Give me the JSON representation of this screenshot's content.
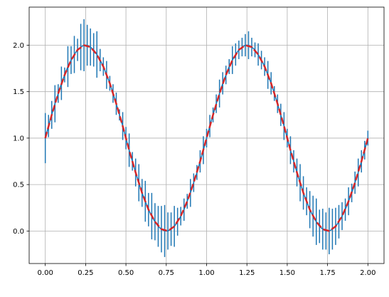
{
  "chart_data": {
    "type": "line",
    "series": [
      {
        "color": "#1f77b4",
        "x": [
          0,
          0.02,
          0.04,
          0.06,
          0.08,
          0.1,
          0.12,
          0.14,
          0.16,
          0.18,
          0.2,
          0.22,
          0.24,
          0.26,
          0.28,
          0.3,
          0.32,
          0.34,
          0.36,
          0.38,
          0.4,
          0.42,
          0.44,
          0.46,
          0.48,
          0.5,
          0.52,
          0.54,
          0.56,
          0.58,
          0.6,
          0.62,
          0.64,
          0.66,
          0.68,
          0.7,
          0.72,
          0.74,
          0.76,
          0.78,
          0.8,
          0.82,
          0.84,
          0.86,
          0.88,
          0.9,
          0.92,
          0.94,
          0.96,
          0.98,
          1,
          1.02,
          1.04,
          1.06,
          1.08,
          1.1,
          1.12,
          1.14,
          1.16,
          1.18,
          1.2,
          1.22,
          1.24,
          1.26,
          1.28,
          1.3,
          1.32,
          1.34,
          1.36,
          1.38,
          1.4,
          1.42,
          1.44,
          1.46,
          1.48,
          1.5,
          1.52,
          1.54,
          1.56,
          1.58,
          1.6,
          1.62,
          1.64,
          1.66,
          1.68,
          1.7,
          1.72,
          1.74,
          1.76,
          1.78,
          1.8,
          1.82,
          1.84,
          1.86,
          1.88,
          1.9,
          1.92,
          1.94,
          1.96,
          1.98,
          2
        ],
        "values": [
          1,
          1.13,
          1.25,
          1.37,
          1.48,
          1.59,
          1.68,
          1.77,
          1.84,
          1.9,
          1.95,
          1.98,
          2,
          2,
          1.98,
          1.95,
          1.9,
          1.84,
          1.77,
          1.68,
          1.59,
          1.48,
          1.37,
          1.25,
          1.13,
          1,
          0.87,
          0.75,
          0.63,
          0.52,
          0.41,
          0.32,
          0.23,
          0.16,
          0.1,
          0.05,
          0.02,
          0,
          0,
          0.02,
          0.05,
          0.1,
          0.16,
          0.23,
          0.32,
          0.41,
          0.52,
          0.63,
          0.75,
          0.87,
          1,
          1.13,
          1.25,
          1.37,
          1.48,
          1.59,
          1.68,
          1.77,
          1.84,
          1.9,
          1.95,
          1.98,
          2,
          2,
          1.98,
          1.95,
          1.9,
          1.84,
          1.77,
          1.68,
          1.59,
          1.48,
          1.37,
          1.25,
          1.13,
          1,
          0.87,
          0.75,
          0.63,
          0.52,
          0.41,
          0.32,
          0.23,
          0.16,
          0.1,
          0.05,
          0.02,
          0,
          0,
          0.02,
          0.05,
          0.1,
          0.16,
          0.23,
          0.32,
          0.41,
          0.52,
          0.63,
          0.75,
          0.87,
          1
        ],
        "errors": [
          0.27,
          0.12,
          0.15,
          0.2,
          0.1,
          0.18,
          0.08,
          0.22,
          0.15,
          0.2,
          0.12,
          0.25,
          0.28,
          0.22,
          0.2,
          0.18,
          0.25,
          0.12,
          0.1,
          0.15,
          0.08,
          0.1,
          0.12,
          0.06,
          0.15,
          0.12,
          0.18,
          0.1,
          0.15,
          0.2,
          0.15,
          0.22,
          0.18,
          0.25,
          0.2,
          0.22,
          0.25,
          0.28,
          0.2,
          0.18,
          0.22,
          0.15,
          0.1,
          0.12,
          0.08,
          0.15,
          0.1,
          0.08,
          0.12,
          0.15,
          0.1,
          0.12,
          0.08,
          0.1,
          0.15,
          0.12,
          0.1,
          0.08,
          0.15,
          0.12,
          0.1,
          0.1,
          0.12,
          0.15,
          0.1,
          0.08,
          0.12,
          0.1,
          0.1,
          0.15,
          0.12,
          0.08,
          0.1,
          0.12,
          0.15,
          0.1,
          0.15,
          0.12,
          0.15,
          0.2,
          0.18,
          0.15,
          0.2,
          0.22,
          0.25,
          0.18,
          0.22,
          0.2,
          0.25,
          0.22,
          0.2,
          0.18,
          0.15,
          0.12,
          0.15,
          0.1,
          0.12,
          0.15,
          0.12,
          0.1,
          0.08
        ]
      },
      {
        "color": "#d62728",
        "linestyle": "dashed",
        "x": [
          0,
          0.04,
          0.08,
          0.12,
          0.16,
          0.2,
          0.24,
          0.28,
          0.32,
          0.36,
          0.4,
          0.44,
          0.48,
          0.52,
          0.56,
          0.6,
          0.64,
          0.68,
          0.72,
          0.76,
          0.8,
          0.84,
          0.88,
          0.92,
          0.96,
          1,
          1.04,
          1.08,
          1.12,
          1.16,
          1.2,
          1.24,
          1.28,
          1.32,
          1.36,
          1.4,
          1.44,
          1.48,
          1.52,
          1.56,
          1.6,
          1.64,
          1.68,
          1.72,
          1.76,
          1.8,
          1.84,
          1.88,
          1.92,
          1.96,
          2
        ],
        "values": [
          1,
          1.25,
          1.48,
          1.68,
          1.84,
          1.95,
          2,
          1.98,
          1.9,
          1.77,
          1.59,
          1.37,
          1.13,
          0.87,
          0.63,
          0.41,
          0.23,
          0.1,
          0.02,
          0,
          0.05,
          0.16,
          0.32,
          0.52,
          0.75,
          1,
          1.25,
          1.48,
          1.68,
          1.84,
          1.95,
          2,
          1.98,
          1.9,
          1.77,
          1.59,
          1.37,
          1.13,
          0.87,
          0.63,
          0.41,
          0.23,
          0.1,
          0.02,
          0,
          0.05,
          0.16,
          0.32,
          0.52,
          0.75,
          1
        ]
      }
    ],
    "xlim": [
      -0.1,
      2.1
    ],
    "ylim": [
      -0.35,
      2.41
    ],
    "xticks": [
      {
        "value": 0,
        "label": "0.00"
      },
      {
        "value": 0.25,
        "label": "0.25"
      },
      {
        "value": 0.5,
        "label": "0.50"
      },
      {
        "value": 0.75,
        "label": "0.75"
      },
      {
        "value": 1,
        "label": "1.00"
      },
      {
        "value": 1.25,
        "label": "1.25"
      },
      {
        "value": 1.5,
        "label": "1.50"
      },
      {
        "value": 1.75,
        "label": "1.75"
      },
      {
        "value": 2,
        "label": "2.00"
      }
    ],
    "yticks": [
      {
        "value": 0,
        "label": "0.0"
      },
      {
        "value": 0.5,
        "label": "0.5"
      },
      {
        "value": 1,
        "label": "1.0"
      },
      {
        "value": 1.5,
        "label": "1.5"
      },
      {
        "value": 2,
        "label": "2.0"
      }
    ],
    "grid": true
  }
}
